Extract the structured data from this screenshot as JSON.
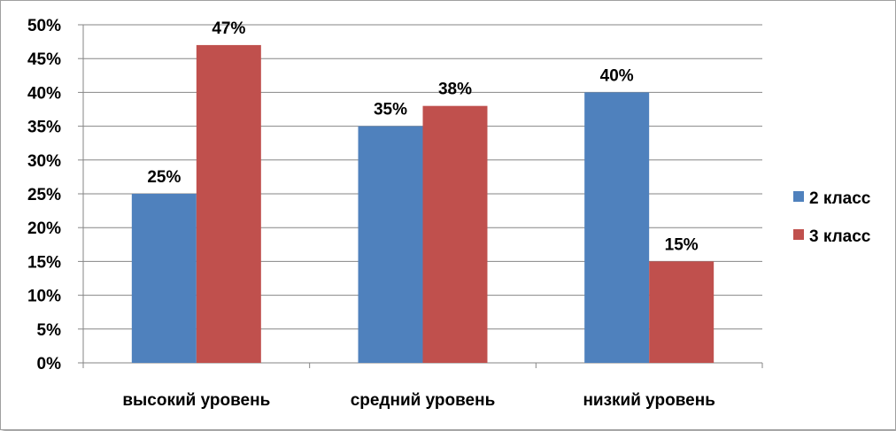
{
  "chart_data": {
    "type": "bar",
    "categories": [
      "высокий уровень",
      "средний уровень",
      "низкий уровень"
    ],
    "series": [
      {
        "name": "2 класс",
        "values": [
          25,
          35,
          40
        ],
        "labels": [
          "25%",
          "35%",
          "40%"
        ],
        "color": "#4f81bd"
      },
      {
        "name": "3 класс",
        "values": [
          47,
          38,
          15
        ],
        "labels": [
          "47%",
          "38%",
          "15%"
        ],
        "color": "#c0504d"
      }
    ],
    "yticks": [
      "0%",
      "5%",
      "10%",
      "15%",
      "20%",
      "25%",
      "30%",
      "35%",
      "40%",
      "45%",
      "50%"
    ],
    "ylim": [
      0,
      50
    ],
    "ystep": 5,
    "grid": true,
    "legend_position": "right",
    "title": "",
    "xlabel": "",
    "ylabel": ""
  }
}
